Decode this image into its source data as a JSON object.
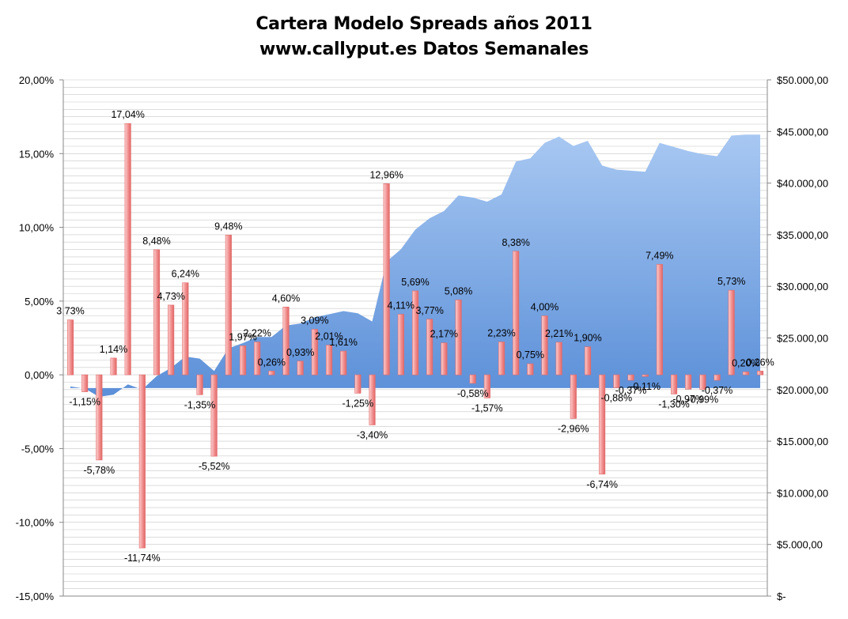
{
  "chart_data": {
    "type": "bar",
    "title": "Cartera Modelo Spreads años 2011",
    "subtitle": "www.callyput.es Datos Semanales",
    "xlabel": "",
    "ylabel": "",
    "y_left": {
      "range": [
        -15,
        20
      ],
      "tick_labels": [
        "20,00%",
        "15,00%",
        "10,00%",
        "5,00%",
        "0,00%",
        "-5,00%",
        "-10,00%",
        "-15,00%"
      ]
    },
    "y_right": {
      "range": [
        0,
        50000
      ],
      "tick_labels": [
        "$50.000,00",
        "$45.000,00",
        "$40.000,00",
        "$35.000,00",
        "$30.000,00",
        "$25.000,00",
        "$20.000,00",
        "$15.000,00",
        "$10.000,00",
        "$5.000,00",
        "$-"
      ]
    },
    "grid": true,
    "legend": "none",
    "colors": {
      "bar_fill": "#f08a8a",
      "bar_light": "#fbd0d0",
      "area_top": "#a8c8f2",
      "area_bottom": "#5b8fd8",
      "grid": "#c8c8c8"
    },
    "series": [
      {
        "type": "bar",
        "axis": "left",
        "values": [
          3.73,
          -1.15,
          -5.78,
          1.14,
          17.04,
          -11.74,
          8.48,
          4.73,
          6.24,
          -1.35,
          -5.52,
          9.48,
          1.97,
          2.22,
          0.26,
          4.6,
          0.93,
          3.09,
          2.01,
          1.61,
          -1.25,
          -3.4,
          12.96,
          4.11,
          5.69,
          3.77,
          2.17,
          5.08,
          -0.58,
          -1.57,
          2.23,
          8.38,
          0.75,
          4.0,
          2.21,
          -2.96,
          1.9,
          -6.74,
          -0.88,
          -0.37,
          -0.11,
          7.49,
          -1.3,
          -0.97,
          -0.99,
          -0.37,
          5.73,
          0.2,
          0.26
        ],
        "labels": [
          "3,73%",
          "-1,15%",
          "-5,78%",
          "1,14%",
          "17,04%",
          "-11,74%",
          "8,48%",
          "4,73%",
          "6,24%",
          "-1,35%",
          "-5,52%",
          "9,48%",
          "1,97%",
          "2,22%",
          "0,26%",
          "4,60%",
          "0,93%",
          "3,09%",
          "2,01%",
          "1,61%",
          "-1,25%",
          "-3,40%",
          "12,96%",
          "4,11%",
          "5,69%",
          "3,77%",
          "2,17%",
          "5,08%",
          "-0,58%",
          "-1,57%",
          "2,23%",
          "8,38%",
          "0,75%",
          "4,00%",
          "2,21%",
          "-2,96%",
          "1,90%",
          "-6,74%",
          "-0,88%",
          "-0,37%",
          "-0,11%",
          "7,49%",
          "-1,30%",
          "-0,97%",
          "-0,99%",
          "-0,37%",
          "5,73%",
          "0,20%",
          "0,26%"
        ]
      },
      {
        "type": "area",
        "axis": "right",
        "values": [
          20300,
          20100,
          19300,
          19500,
          20500,
          20000,
          21300,
          22100,
          23200,
          23000,
          21800,
          24000,
          24500,
          25100,
          25100,
          26200,
          26400,
          27000,
          27300,
          27600,
          27400,
          26600,
          32400,
          33600,
          35500,
          36600,
          37300,
          38800,
          38600,
          38200,
          38900,
          42100,
          42400,
          43900,
          44500,
          43600,
          44100,
          41700,
          41300,
          41200,
          41100,
          43900,
          43500,
          43100,
          42800,
          42600,
          44600,
          44700,
          44700
        ]
      }
    ]
  }
}
